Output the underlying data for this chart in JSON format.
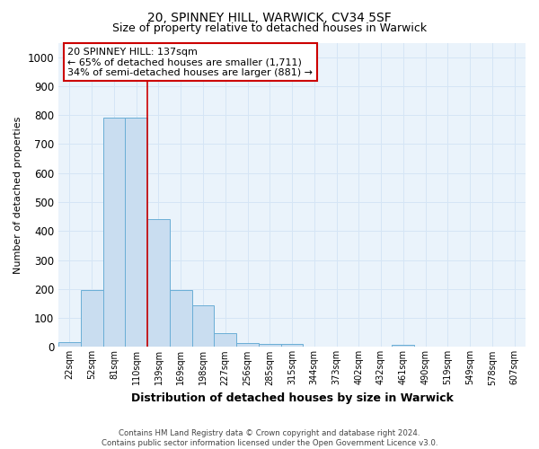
{
  "title": "20, SPINNEY HILL, WARWICK, CV34 5SF",
  "subtitle": "Size of property relative to detached houses in Warwick",
  "xlabel": "Distribution of detached houses by size in Warwick",
  "ylabel": "Number of detached properties",
  "footnote": "Contains HM Land Registry data © Crown copyright and database right 2024.\nContains public sector information licensed under the Open Government Licence v3.0.",
  "bin_labels": [
    "22sqm",
    "52sqm",
    "81sqm",
    "110sqm",
    "139sqm",
    "169sqm",
    "198sqm",
    "227sqm",
    "256sqm",
    "285sqm",
    "315sqm",
    "344sqm",
    "373sqm",
    "402sqm",
    "432sqm",
    "461sqm",
    "490sqm",
    "519sqm",
    "549sqm",
    "578sqm",
    "607sqm"
  ],
  "bar_values": [
    18,
    195,
    790,
    790,
    440,
    195,
    143,
    48,
    15,
    12,
    12,
    0,
    0,
    0,
    0,
    8,
    0,
    0,
    0,
    0,
    0
  ],
  "bar_color": "#c9ddf0",
  "bar_edge_color": "#6aaed6",
  "vline_x_index": 4,
  "vline_color": "#cc0000",
  "annotation_text": "20 SPINNEY HILL: 137sqm\n← 65% of detached houses are smaller (1,711)\n34% of semi-detached houses are larger (881) →",
  "annotation_box_color": "#ffffff",
  "annotation_box_edge": "#cc0000",
  "ylim": [
    0,
    1050
  ],
  "yticks": [
    0,
    100,
    200,
    300,
    400,
    500,
    600,
    700,
    800,
    900,
    1000
  ],
  "background_color": "#ffffff",
  "grid_color": "#d5e5f5",
  "title_fontsize": 10,
  "subtitle_fontsize": 9
}
